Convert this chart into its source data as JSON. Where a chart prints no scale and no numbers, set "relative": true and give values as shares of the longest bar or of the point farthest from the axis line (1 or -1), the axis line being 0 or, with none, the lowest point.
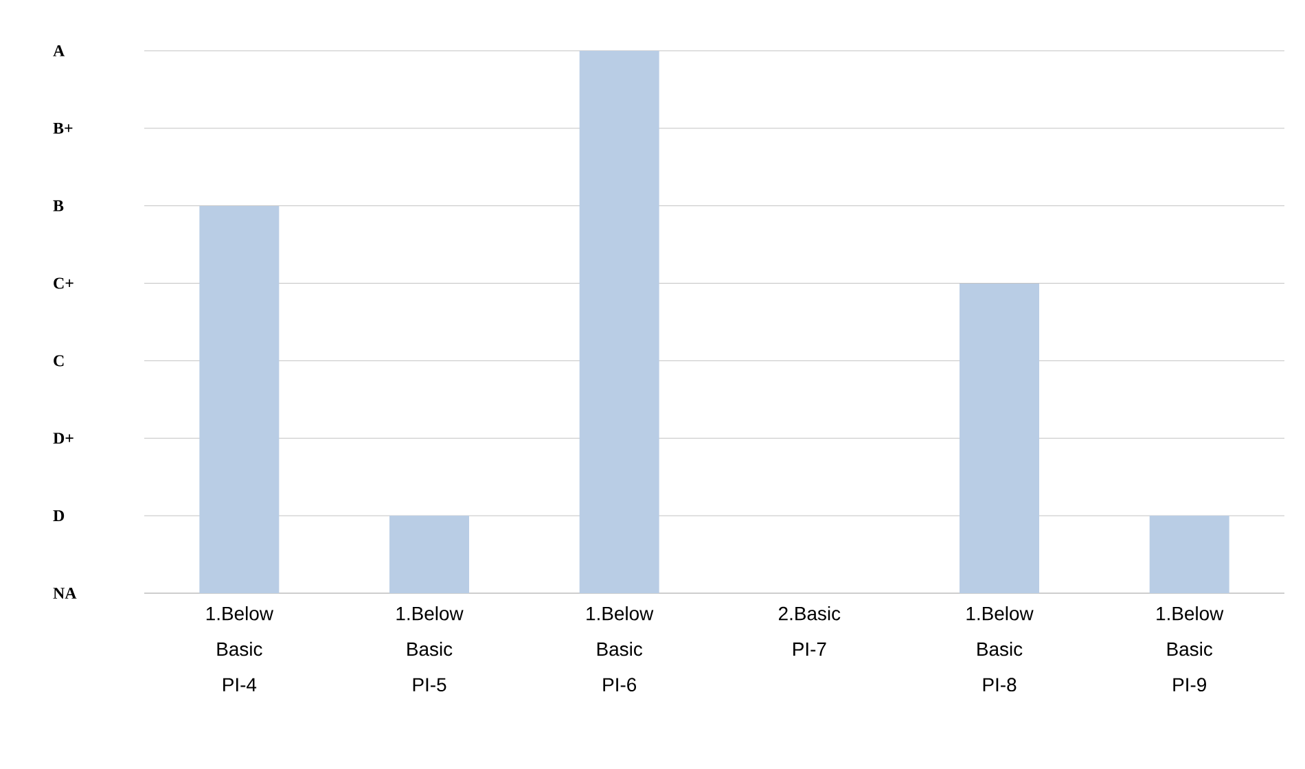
{
  "chart_data": {
    "type": "bar",
    "relative": true,
    "categories": [
      "1.Below Basic PI-4",
      "1.Below Basic PI-5",
      "1.Below Basic PI-6",
      "2.Basic PI-7",
      "1.Below Basic PI-8",
      "1.Below Basic PI-9"
    ],
    "values": [
      0.714,
      0.143,
      1,
      0,
      0.571,
      0.143
    ],
    "color": "#b9cde5",
    "annotations": [
      "A",
      "B+",
      "B",
      "C+",
      "C",
      "D+",
      "D",
      "NA"
    ],
    "grid": "y"
  }
}
